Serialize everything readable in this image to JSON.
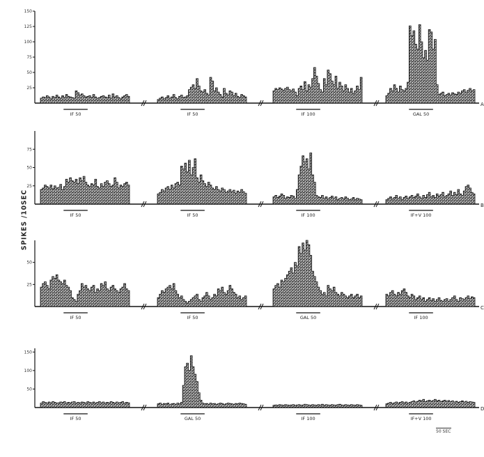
{
  "chart_data": {
    "type": "bar",
    "ylabel": "SPIKES /10SEC",
    "scale_label": "50 SEC",
    "rows": [
      {
        "row_label": "A",
        "ytick_labels": [
          "150",
          "125",
          "100",
          "75",
          "50",
          "25"
        ],
        "ymax": 150,
        "panels": [
          {
            "stim_label": "IF 50",
            "values": [
              8,
              10,
              9,
              12,
              10,
              7,
              11,
              9,
              13,
              10,
              8,
              12,
              9,
              14,
              11,
              10,
              9,
              8,
              20,
              17,
              13,
              15,
              12,
              10,
              11,
              12,
              9,
              14,
              10,
              8,
              9,
              11,
              12,
              10,
              9,
              13,
              8,
              15,
              10,
              12,
              9,
              7,
              10,
              12,
              14,
              11
            ]
          },
          {
            "stim_label": "IF 50",
            "values": [
              6,
              8,
              10,
              7,
              9,
              12,
              8,
              10,
              14,
              9,
              7,
              11,
              13,
              9,
              10,
              12,
              22,
              26,
              30,
              24,
              40,
              28,
              20,
              18,
              22,
              16,
              13,
              42,
              36,
              20,
              25,
              18,
              14,
              10,
              24,
              16,
              13,
              20,
              18,
              12,
              16,
              11,
              9,
              14,
              12,
              10
            ]
          },
          {
            "stim_label": "IF 100",
            "values": [
              20,
              24,
              22,
              25,
              23,
              21,
              24,
              26,
              22,
              20,
              23,
              18,
              12,
              24,
              28,
              22,
              35,
              20,
              30,
              26,
              40,
              58,
              44,
              32,
              22,
              18,
              40,
              30,
              54,
              48,
              36,
              30,
              44,
              24,
              34,
              28,
              20,
              30,
              24,
              18,
              24,
              16,
              20,
              28,
              22,
              42
            ]
          },
          {
            "stim_label": "GAL 50",
            "values": [
              12,
              16,
              24,
              20,
              30,
              24,
              18,
              28,
              22,
              20,
              24,
              34,
              126,
              110,
              118,
              96,
              88,
              128,
              100,
              74,
              86,
              70,
              120,
              116,
              88,
              104,
              30,
              14,
              16,
              18,
              12,
              14,
              16,
              13,
              17,
              15,
              14,
              18,
              16,
              20,
              22,
              18,
              21,
              24,
              20,
              22
            ]
          }
        ]
      },
      {
        "row_label": "B",
        "ytick_labels": [
          "75",
          "50",
          "25"
        ],
        "ymax": 100,
        "panels": [
          {
            "stim_label": "IF 50",
            "values": [
              20,
              22,
              26,
              24,
              22,
              26,
              21,
              25,
              22,
              23,
              27,
              20,
              24,
              34,
              30,
              36,
              32,
              30,
              34,
              28,
              36,
              32,
              38,
              30,
              26,
              24,
              28,
              26,
              34,
              24,
              22,
              28,
              24,
              30,
              32,
              28,
              24,
              26,
              36,
              30,
              22,
              26,
              24,
              28,
              30,
              26
            ]
          },
          {
            "stim_label": "IF 50",
            "values": [
              14,
              16,
              20,
              18,
              22,
              24,
              20,
              26,
              22,
              28,
              30,
              26,
              52,
              48,
              56,
              44,
              60,
              40,
              50,
              62,
              36,
              30,
              40,
              32,
              28,
              24,
              30,
              26,
              22,
              20,
              24,
              20,
              18,
              22,
              20,
              16,
              18,
              20,
              17,
              19,
              15,
              18,
              16,
              20,
              17,
              15
            ]
          },
          {
            "stim_label": "IF 100",
            "values": [
              10,
              12,
              9,
              11,
              14,
              12,
              8,
              10,
              9,
              12,
              11,
              8,
              20,
              40,
              52,
              66,
              58,
              62,
              48,
              70,
              40,
              30,
              12,
              10,
              9,
              12,
              8,
              10,
              7,
              9,
              11,
              8,
              10,
              6,
              8,
              9,
              7,
              10,
              8,
              6,
              7,
              9,
              6,
              8,
              7,
              6
            ]
          },
          {
            "stim_label": "IF+V 100",
            "values": [
              6,
              8,
              10,
              7,
              9,
              12,
              8,
              10,
              6,
              9,
              11,
              8,
              10,
              12,
              9,
              11,
              14,
              10,
              8,
              12,
              9,
              13,
              16,
              10,
              12,
              9,
              14,
              11,
              13,
              16,
              10,
              12,
              14,
              18,
              12,
              16,
              13,
              20,
              14,
              12,
              18,
              24,
              26,
              22,
              16,
              14
            ]
          }
        ]
      },
      {
        "row_label": "C",
        "ytick_labels": [
          "50",
          "25"
        ],
        "ymax": 75,
        "panels": [
          {
            "stim_label": "IF 50",
            "values": [
              22,
              26,
              28,
              24,
              20,
              30,
              34,
              32,
              36,
              30,
              28,
              26,
              30,
              24,
              22,
              18,
              10,
              8,
              6,
              14,
              18,
              26,
              22,
              24,
              20,
              18,
              22,
              24,
              16,
              20,
              18,
              26,
              24,
              28,
              20,
              18,
              22,
              24,
              20,
              18,
              16,
              20,
              22,
              26,
              20,
              18
            ]
          },
          {
            "stim_label": "IF 50",
            "values": [
              10,
              14,
              18,
              16,
              20,
              22,
              24,
              20,
              26,
              18,
              14,
              10,
              12,
              8,
              6,
              4,
              6,
              8,
              10,
              12,
              14,
              8,
              6,
              10,
              12,
              16,
              12,
              8,
              10,
              14,
              12,
              20,
              18,
              22,
              16,
              14,
              18,
              24,
              20,
              16,
              14,
              10,
              12,
              8,
              10,
              12
            ]
          },
          {
            "stim_label": "GAL 50",
            "values": [
              20,
              24,
              26,
              22,
              30,
              28,
              32,
              36,
              40,
              44,
              38,
              50,
              46,
              68,
              60,
              72,
              64,
              76,
              70,
              58,
              40,
              34,
              28,
              22,
              18,
              14,
              16,
              12,
              24,
              20,
              18,
              22,
              16,
              14,
              12,
              16,
              14,
              12,
              10,
              12,
              14,
              10,
              12,
              14,
              10,
              12
            ]
          },
          {
            "stim_label": "IF 100",
            "values": [
              14,
              12,
              16,
              18,
              14,
              12,
              16,
              14,
              18,
              20,
              16,
              12,
              10,
              14,
              12,
              8,
              10,
              12,
              8,
              10,
              6,
              8,
              10,
              7,
              9,
              6,
              8,
              10,
              7,
              6,
              8,
              9,
              6,
              8,
              10,
              12,
              8,
              6,
              10,
              9,
              8,
              10,
              12,
              9,
              11,
              10
            ]
          }
        ]
      },
      {
        "row_label": "D",
        "ytick_labels": [
          "150",
          "100",
          "50"
        ],
        "ymax": 160,
        "panels": [
          {
            "stim_label": "IF 50",
            "values": [
              12,
              16,
              14,
              12,
              15,
              13,
              16,
              14,
              12,
              13,
              15,
              14,
              16,
              12,
              14,
              13,
              15,
              16,
              12,
              14,
              13,
              15,
              14,
              12,
              16,
              14,
              13,
              15,
              12,
              14,
              16,
              13,
              15,
              12,
              14,
              13,
              16,
              14,
              12,
              15,
              13,
              14,
              16,
              12,
              14,
              13
            ]
          },
          {
            "stim_label": "GAL 50",
            "values": [
              10,
              12,
              9,
              11,
              10,
              12,
              8,
              10,
              11,
              9,
              12,
              10,
              14,
              60,
              110,
              120,
              100,
              140,
              110,
              90,
              70,
              40,
              20,
              12,
              10,
              11,
              9,
              12,
              10,
              11,
              9,
              10,
              12,
              11,
              9,
              10,
              12,
              11,
              10,
              9,
              11,
              10,
              12,
              11,
              10,
              9
            ]
          },
          {
            "stim_label": "IF 100",
            "values": [
              6,
              7,
              6,
              8,
              7,
              6,
              8,
              7,
              6,
              7,
              8,
              6,
              7,
              8,
              6,
              7,
              9,
              8,
              7,
              6,
              8,
              7,
              6,
              8,
              7,
              9,
              6,
              8,
              7,
              6,
              8,
              7,
              6,
              8,
              9,
              7,
              6,
              8,
              7,
              6,
              8,
              7,
              6,
              8,
              7,
              6
            ]
          },
          {
            "stim_label": "IF+V 100",
            "values": [
              10,
              12,
              14,
              11,
              13,
              15,
              12,
              14,
              16,
              13,
              15,
              12,
              14,
              16,
              18,
              15,
              17,
              20,
              18,
              22,
              16,
              18,
              20,
              17,
              19,
              22,
              18,
              20,
              16,
              18,
              20,
              17,
              19,
              16,
              18,
              15,
              17,
              14,
              16,
              18,
              15,
              17,
              14,
              16,
              15,
              14
            ]
          }
        ]
      }
    ]
  }
}
